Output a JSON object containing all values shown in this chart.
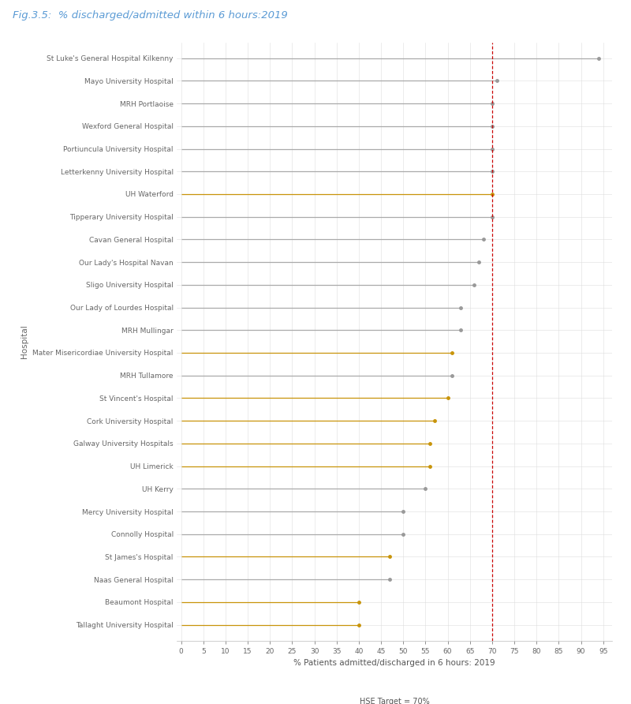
{
  "title": "Fig.3.5:  % discharged/admitted within 6 hours:2019",
  "xlabel": "% Patients admitted/discharged in 6 hours: 2019",
  "ylabel": "Hospital",
  "target_line": 70,
  "target_label": "HSE Target = 70%",
  "xlim": [
    -1,
    97
  ],
  "xticks": [
    0,
    5,
    10,
    15,
    20,
    25,
    30,
    35,
    40,
    45,
    50,
    55,
    60,
    65,
    70,
    75,
    80,
    85,
    90,
    95
  ],
  "hospitals": [
    {
      "name": "St Luke's General Hospital Kilkenny",
      "value": 94,
      "orange": false
    },
    {
      "name": "Mayo University Hospital",
      "value": 71,
      "orange": false
    },
    {
      "name": "MRH Portlaoise",
      "value": 70,
      "orange": false
    },
    {
      "name": "Wexford General Hospital",
      "value": 70,
      "orange": false
    },
    {
      "name": "Portiuncula University Hospital",
      "value": 70,
      "orange": false
    },
    {
      "name": "Letterkenny University Hospital",
      "value": 70,
      "orange": false
    },
    {
      "name": "UH Waterford",
      "value": 70,
      "orange": true
    },
    {
      "name": "Tipperary University Hospital",
      "value": 70,
      "orange": false
    },
    {
      "name": "Cavan General Hospital",
      "value": 68,
      "orange": false
    },
    {
      "name": "Our Lady's Hospital Navan",
      "value": 67,
      "orange": false
    },
    {
      "name": "Sligo University Hospital",
      "value": 66,
      "orange": false
    },
    {
      "name": "Our Lady of Lourdes Hospital",
      "value": 63,
      "orange": false
    },
    {
      "name": "MRH Mullingar",
      "value": 63,
      "orange": false
    },
    {
      "name": "Mater Misericordiae University Hospital",
      "value": 61,
      "orange": true
    },
    {
      "name": "MRH Tullamore",
      "value": 61,
      "orange": false
    },
    {
      "name": "St Vincent's Hospital",
      "value": 60,
      "orange": true
    },
    {
      "name": "Cork University Hospital",
      "value": 57,
      "orange": true
    },
    {
      "name": "Galway University Hospitals",
      "value": 56,
      "orange": true
    },
    {
      "name": "UH Limerick",
      "value": 56,
      "orange": true
    },
    {
      "name": "UH Kerry",
      "value": 55,
      "orange": false
    },
    {
      "name": "Mercy University Hospital",
      "value": 50,
      "orange": false
    },
    {
      "name": "Connolly Hospital",
      "value": 50,
      "orange": false
    },
    {
      "name": "St James's Hospital",
      "value": 47,
      "orange": true
    },
    {
      "name": "Naas General Hospital",
      "value": 47,
      "orange": false
    },
    {
      "name": "Beaumont Hospital",
      "value": 40,
      "orange": true
    },
    {
      "name": "Tallaght University Hospital",
      "value": 40,
      "orange": true
    }
  ],
  "orange_color": "#C8940A",
  "gray_color": "#AAAAAA",
  "dot_color_orange": "#C8940A",
  "dot_color_gray": "#999999",
  "target_color": "#CC0000",
  "background_color": "#FFFFFF",
  "grid_color": "#DDDDDD",
  "title_color": "#5B9BD5",
  "title_fontsize": 9.5,
  "xlabel_fontsize": 7.5,
  "ylabel_fontsize": 7.5,
  "tick_fontsize": 6.5,
  "label_fontsize": 6.5,
  "target_label_fontsize": 7
}
